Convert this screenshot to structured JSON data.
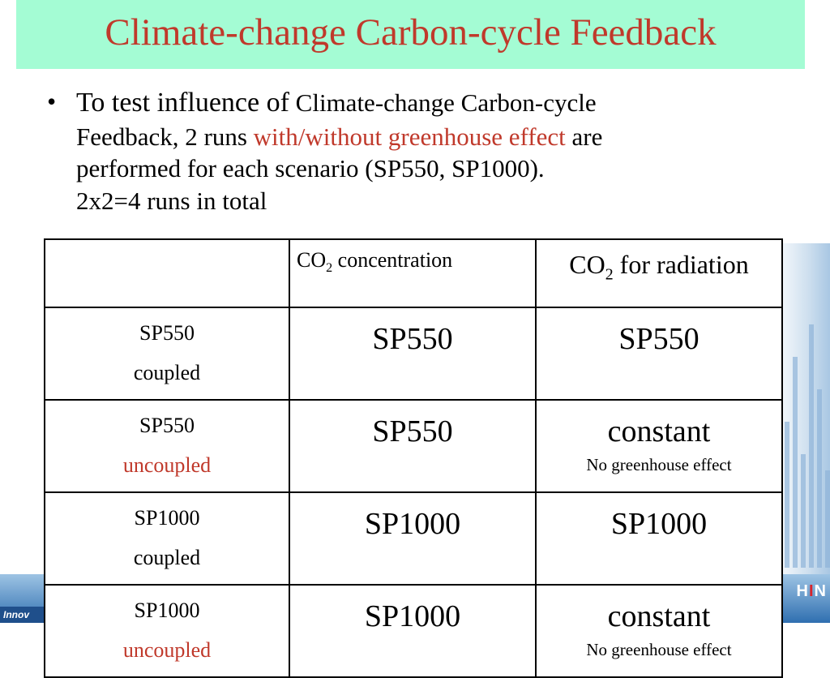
{
  "slide": {
    "title": "Climate-change Carbon-cycle Feedback",
    "bullet": {
      "marker": "•",
      "part1": "To test influence of",
      "part2": "Climate-change Carbon-cycle",
      "part3": "Feedback, 2 runs",
      "highlight": "with/without greenhouse effect",
      "part4": "are",
      "line3": "performed for each scenario (SP550, SP1000).",
      "line4": "2x2=4 runs in total"
    }
  },
  "table": {
    "header": {
      "col1": {
        "prefix": "CO",
        "sub": "2",
        "rest": " concentration"
      },
      "col2": {
        "prefix": "CO",
        "sub": "2",
        "rest": " for radiation"
      }
    },
    "rows": [
      {
        "name": "SP550",
        "mode": "coupled",
        "conc": "SP550",
        "radiation": "SP550",
        "note": ""
      },
      {
        "name": "SP550",
        "mode": "uncoupled",
        "conc": "SP550",
        "radiation": "constant",
        "note": "No greenhouse effect"
      },
      {
        "name": "SP1000",
        "mode": "coupled",
        "conc": "SP1000",
        "radiation": "SP1000",
        "note": ""
      },
      {
        "name": "SP1000",
        "mode": "uncoupled",
        "conc": "SP1000",
        "radiation": "constant",
        "note": "No greenhouse effect"
      }
    ]
  },
  "branding": {
    "right_text": "HIN",
    "right_accent": "I",
    "left_text": "Innov"
  },
  "colors": {
    "title_bg": "#a4fcd4",
    "accent_red": "#c0392b",
    "band_blue": "#2f6fb0"
  }
}
